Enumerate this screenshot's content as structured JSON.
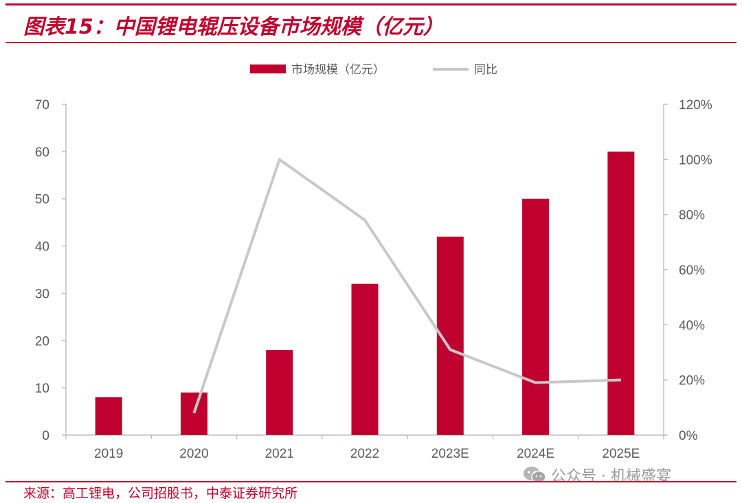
{
  "title": "图表15：中国锂电辊压设备市场规模（亿元）",
  "source": "来源：高工锂电，公司招股书，中泰证券研究所",
  "watermark": "公众号 · 机械盛宴",
  "colors": {
    "accent": "#c0002e",
    "bar": "#c0002e",
    "line": "#c8c8c8",
    "axis": "#bfbfbf",
    "text": "#595959"
  },
  "chart_data": {
    "type": "bar",
    "categories": [
      "2019",
      "2020",
      "2021",
      "2022",
      "2023E",
      "2024E",
      "2025E"
    ],
    "series": [
      {
        "name": "市场规模（亿元）",
        "type": "bar",
        "axis": "left",
        "values": [
          8,
          9,
          18,
          32,
          42,
          50,
          60
        ]
      },
      {
        "name": "同比",
        "type": "line",
        "axis": "right",
        "values": [
          null,
          0.08,
          1.0,
          0.78,
          0.31,
          0.19,
          0.2
        ]
      }
    ],
    "y_left": {
      "ylim": [
        0,
        70
      ],
      "ticks": [
        "0",
        "10",
        "20",
        "30",
        "40",
        "50",
        "60",
        "70"
      ]
    },
    "y_right": {
      "ylim": [
        0,
        1.2
      ],
      "ticks": [
        "0%",
        "20%",
        "40%",
        "60%",
        "80%",
        "100%",
        "120%"
      ]
    },
    "legend": "top-center",
    "grid": false
  }
}
